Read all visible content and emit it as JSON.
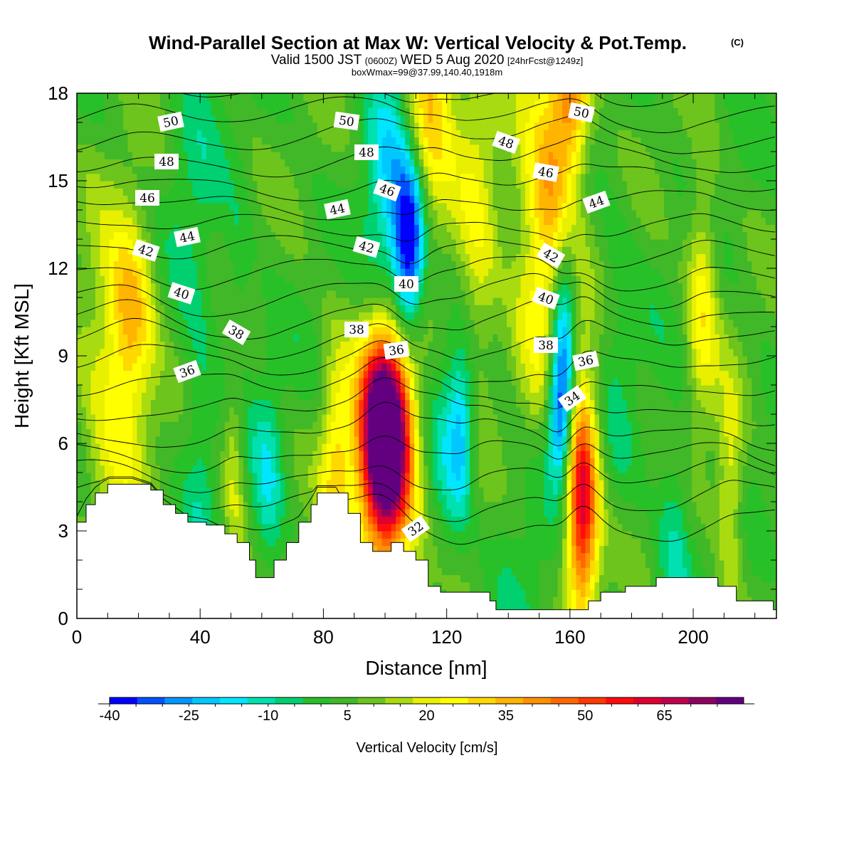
{
  "header": {
    "title": "Wind-Parallel Section at Max W: Vertical Velocity & Pot.Temp.",
    "title_mark": "(C)",
    "subtitle_a": "Valid 1500 JST",
    "subtitle_b": "(0600Z)",
    "subtitle_c": "WED 5 Aug 2020",
    "subtitle_d": "[24hrFcst@1249z]",
    "subtitle_line3": "boxWmax=99@37.99,140.40,1918m"
  },
  "chart_data": {
    "type": "heatmap",
    "xlabel": "Distance [nm]",
    "ylabel": "Height [Kft MSL]",
    "xlim": [
      0,
      227
    ],
    "ylim": [
      0,
      18
    ],
    "xticks": [
      0,
      40,
      80,
      120,
      160,
      200
    ],
    "yticks": [
      0,
      3,
      6,
      9,
      12,
      15,
      18
    ],
    "grid": false,
    "colorbar": {
      "title": "Vertical Velocity [cm/s]",
      "min": -40,
      "max": 80,
      "step": 5,
      "tick_labels": [
        -40,
        -25,
        -10,
        5,
        20,
        35,
        50,
        65
      ],
      "colors": [
        "#0000ff",
        "#0050ff",
        "#0096ff",
        "#00c8ff",
        "#00e6ff",
        "#00e0b0",
        "#00d070",
        "#28c028",
        "#40b828",
        "#6cc41c",
        "#a8dc10",
        "#e8f000",
        "#ffff00",
        "#ffd800",
        "#ffb400",
        "#ff9000",
        "#ff6800",
        "#ff3800",
        "#ff0c0c",
        "#e00030",
        "#c0004c",
        "#900060",
        "#620080"
      ]
    },
    "terrain": [
      [
        0,
        3.3
      ],
      [
        3,
        3.9
      ],
      [
        6,
        4.3
      ],
      [
        10,
        4.6
      ],
      [
        18,
        4.6
      ],
      [
        24,
        4.4
      ],
      [
        28,
        3.9
      ],
      [
        32,
        3.6
      ],
      [
        36,
        3.3
      ],
      [
        42,
        3.2
      ],
      [
        48,
        2.9
      ],
      [
        52,
        2.6
      ],
      [
        56,
        2.0
      ],
      [
        58,
        1.4
      ],
      [
        62,
        1.4
      ],
      [
        64,
        2.0
      ],
      [
        68,
        2.6
      ],
      [
        72,
        3.3
      ],
      [
        76,
        3.9
      ],
      [
        78,
        4.3
      ],
      [
        84,
        4.3
      ],
      [
        88,
        3.6
      ],
      [
        92,
        2.6
      ],
      [
        96,
        2.3
      ],
      [
        100,
        2.3
      ],
      [
        102,
        2.6
      ],
      [
        106,
        2.3
      ],
      [
        110,
        2.0
      ],
      [
        114,
        1.1
      ],
      [
        118,
        0.9
      ],
      [
        130,
        0.9
      ],
      [
        134,
        0.6
      ],
      [
        136,
        0.3
      ],
      [
        160,
        0.3
      ],
      [
        166,
        0.6
      ],
      [
        170,
        0.9
      ],
      [
        178,
        1.1
      ],
      [
        188,
        1.4
      ],
      [
        204,
        1.4
      ],
      [
        208,
        1.1
      ],
      [
        214,
        0.6
      ],
      [
        222,
        0.6
      ],
      [
        226,
        0.3
      ]
    ],
    "w_cells": [
      {
        "x": 100,
        "z": 6.2,
        "sx": 5,
        "sz": 2.3,
        "w": 80
      },
      {
        "x": 101,
        "z": 5.8,
        "sx": 8,
        "sz": 3.5,
        "w": 35
      },
      {
        "x": 164,
        "z": 3.5,
        "sx": 3.5,
        "sz": 2.5,
        "w": 45
      },
      {
        "x": 163,
        "z": 6,
        "sx": 5,
        "sz": 3,
        "w": 20
      },
      {
        "x": 18,
        "z": 10.5,
        "sx": 5,
        "sz": 2.2,
        "w": 22
      },
      {
        "x": 12,
        "z": 8,
        "sx": 8,
        "sz": 4,
        "w": 18
      },
      {
        "x": 114,
        "z": 18,
        "sx": 6,
        "sz": 3,
        "w": 30
      },
      {
        "x": 130,
        "z": 13,
        "sx": 5,
        "sz": 5,
        "w": 15
      },
      {
        "x": 148,
        "z": 12,
        "sx": 6,
        "sz": 5,
        "w": 16
      },
      {
        "x": 155,
        "z": 15,
        "sx": 5,
        "sz": 3.5,
        "w": 25
      },
      {
        "x": 161,
        "z": 18,
        "sx": 4,
        "sz": 2,
        "w": 30
      },
      {
        "x": 203,
        "z": 11,
        "sx": 3.5,
        "sz": 3,
        "w": 20
      },
      {
        "x": 212,
        "z": 4.5,
        "sx": 3,
        "sz": 2.5,
        "w": 18
      },
      {
        "x": 84,
        "z": 5,
        "sx": 3.5,
        "sz": 3,
        "w": 20
      },
      {
        "x": 51,
        "z": 5.5,
        "sx": 2.5,
        "sz": 3,
        "w": 15
      },
      {
        "x": 108,
        "z": 12.8,
        "sx": 3.5,
        "sz": 2,
        "w": -42
      },
      {
        "x": 102,
        "z": 14,
        "sx": 6,
        "sz": 4,
        "w": -22
      },
      {
        "x": 157,
        "z": 7,
        "sx": 3,
        "sz": 1.8,
        "w": -38
      },
      {
        "x": 158,
        "z": 10,
        "sx": 3,
        "sz": 2.5,
        "w": -28
      },
      {
        "x": 125,
        "z": 6.5,
        "sx": 3,
        "sz": 2,
        "w": -22
      },
      {
        "x": 119,
        "z": 5.5,
        "sx": 5,
        "sz": 3,
        "w": -12
      },
      {
        "x": 62,
        "z": 4.5,
        "sx": 3.5,
        "sz": 2.5,
        "w": -15
      },
      {
        "x": 52,
        "z": 10.5,
        "sx": 3,
        "sz": 2.5,
        "w": -10
      },
      {
        "x": 194,
        "z": 3,
        "sx": 4,
        "sz": 2.5,
        "w": -12
      },
      {
        "x": 40,
        "z": 5.5,
        "sx": 3.5,
        "sz": 3,
        "w": -8
      },
      {
        "x": 38,
        "z": 14.5,
        "sx": 6,
        "sz": 5,
        "w": -7
      },
      {
        "x": 175,
        "z": 9,
        "sx": 5,
        "sz": 4,
        "w": -6
      },
      {
        "x": 145,
        "z": 4,
        "sx": 8,
        "sz": 3,
        "w": -8
      }
    ],
    "theta_levels": [
      32,
      33,
      34,
      35,
      36,
      37,
      38,
      39,
      40,
      41,
      42,
      43,
      44,
      45,
      46,
      47,
      48,
      49,
      50,
      51
    ],
    "theta_labels": [
      "50",
      "48",
      "46",
      "42",
      "44",
      "40",
      "38",
      "36",
      "50",
      "48",
      "46",
      "44",
      "42",
      "40",
      "38",
      "36",
      "32",
      "48",
      "50",
      "46",
      "44",
      "42",
      "40",
      "38",
      "36",
      "34"
    ]
  }
}
